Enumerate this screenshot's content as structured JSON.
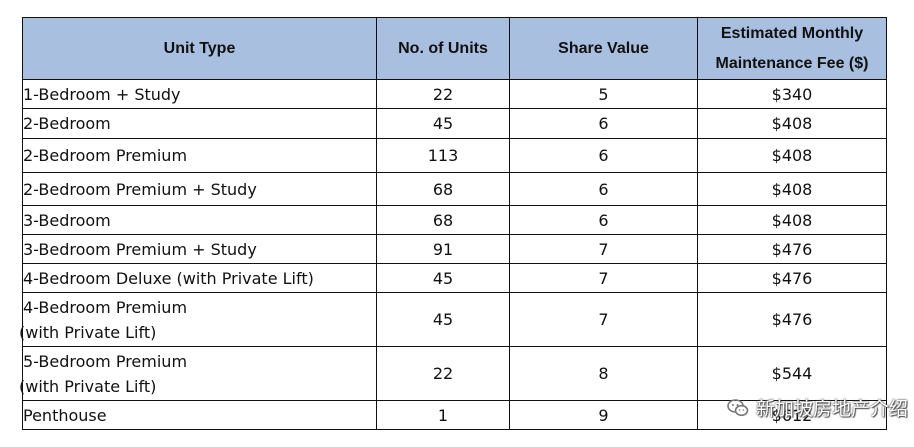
{
  "table": {
    "headers": {
      "unit_type": "Unit Type",
      "units": "No. of Units",
      "share": "Share Value",
      "fee_line1": "Estimated Monthly",
      "fee_line2": "Maintenance Fee ($)"
    },
    "rows": [
      {
        "type_line1": "1-Bedroom + Study",
        "type_line2": "",
        "units": "22",
        "share": "5",
        "fee": "$340"
      },
      {
        "type_line1": "2-Bedroom",
        "type_line2": "",
        "units": "45",
        "share": "6",
        "fee": "$408"
      },
      {
        "type_line1": "2-Bedroom Premium",
        "type_line2": "",
        "units": "113",
        "share": "6",
        "fee": "$408"
      },
      {
        "type_line1": "2-Bedroom Premium + Study",
        "type_line2": "",
        "units": "68",
        "share": "6",
        "fee": "$408"
      },
      {
        "type_line1": "3-Bedroom",
        "type_line2": "",
        "units": "68",
        "share": "6",
        "fee": "$408"
      },
      {
        "type_line1": "3-Bedroom Premium + Study",
        "type_line2": "",
        "units": "91",
        "share": "7",
        "fee": "$476"
      },
      {
        "type_line1": "4-Bedroom Deluxe (with Private Lift)",
        "type_line2": "",
        "units": "45",
        "share": "7",
        "fee": "$476"
      },
      {
        "type_line1": "4-Bedroom Premium",
        "type_line2": "(with Private Lift)",
        "units": "45",
        "share": "7",
        "fee": "$476"
      },
      {
        "type_line1": "5-Bedroom Premium",
        "type_line2": "(with Private Lift)",
        "units": "22",
        "share": "8",
        "fee": "$544"
      },
      {
        "type_line1": "Penthouse",
        "type_line2": "",
        "units": "1",
        "share": "9",
        "fee": "$612"
      }
    ]
  },
  "watermark": {
    "text": "新加坡房地产介绍",
    "icon": "wechat-icon"
  }
}
